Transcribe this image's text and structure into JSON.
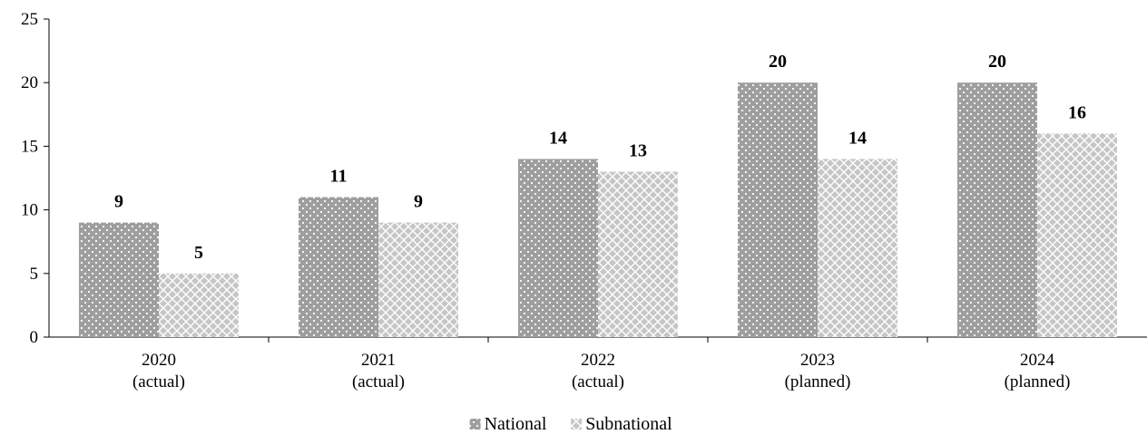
{
  "chart_data": {
    "type": "bar",
    "categories": [
      [
        "2020",
        "(actual)"
      ],
      [
        "2021",
        "(actual)"
      ],
      [
        "2022",
        "(actual)"
      ],
      [
        "2023",
        "(planned)"
      ],
      [
        "2024",
        "(planned)"
      ]
    ],
    "series": [
      {
        "name": "National",
        "values": [
          9,
          11,
          14,
          20,
          20
        ],
        "color": "#9e9e9e",
        "pattern": "dots"
      },
      {
        "name": "Subnational",
        "values": [
          5,
          9,
          13,
          14,
          16
        ],
        "color": "#c8c8c8",
        "pattern": "crosshatch"
      }
    ],
    "ylim": [
      0,
      25
    ],
    "yticks": [
      0,
      5,
      10,
      15,
      20,
      25
    ],
    "legend_position": "bottom",
    "grid": false,
    "title": "",
    "xlabel": "",
    "ylabel": ""
  }
}
